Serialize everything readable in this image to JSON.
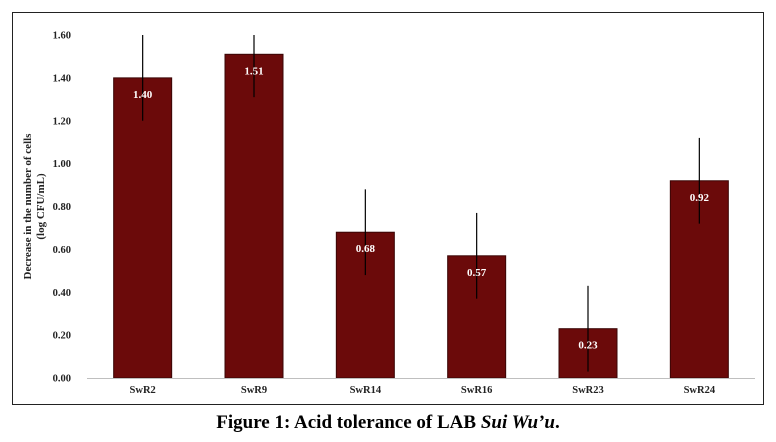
{
  "figure": {
    "caption_main": "Figure 1: Acid tolerance of LAB ",
    "caption_italic": "Sui Wu’u",
    "caption_end": "."
  },
  "chart_data": {
    "type": "bar",
    "categories": [
      "SwR2",
      "SwR9",
      "SwR14",
      "SwR16",
      "SwR23",
      "SwR24"
    ],
    "values": [
      1.4,
      1.51,
      0.68,
      0.57,
      0.23,
      0.92
    ],
    "value_labels": [
      "1.40",
      "1.51",
      "0.68",
      "0.57",
      "0.23",
      "0.92"
    ],
    "error": [
      0.2,
      0.2,
      0.2,
      0.2,
      0.2,
      0.2
    ],
    "title": "",
    "xlabel": "",
    "ylabel": "Decrease in the number of cells",
    "ylabel_units": "(log CFU/mL)",
    "ylim": [
      0,
      1.6
    ],
    "yticks": [
      0,
      0.2,
      0.4,
      0.6,
      0.8,
      1.0,
      1.2,
      1.4,
      1.6
    ],
    "ytick_labels": [
      "0.00",
      "0.20",
      "0.40",
      "0.60",
      "0.80",
      "1.00",
      "1.20",
      "1.40",
      "1.60"
    ],
    "grid": false,
    "legend": "none",
    "bar_color": "#6b0a0a",
    "bar_edge_color": "#3a0505",
    "label_color": "#ffffff",
    "error_color": "#000000"
  }
}
